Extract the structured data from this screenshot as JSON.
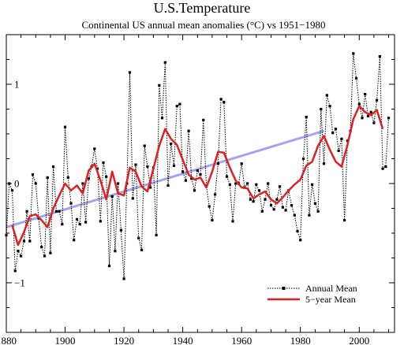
{
  "chart_data": {
    "type": "line",
    "title": "U.S.Temperature",
    "subtitle": "Continental US annual mean anomalies (°C) vs 1951−1980",
    "xlabel": "",
    "ylabel": "",
    "xlim": [
      1880,
      2012
    ],
    "ylim": [
      -1.5,
      1.5
    ],
    "x_ticks": [
      "1880",
      "1900",
      "1920",
      "1940",
      "1960",
      "1980",
      "2000"
    ],
    "y_ticks": [
      "−1",
      "0",
      "1"
    ],
    "grid": false,
    "legend_position": "bottom-right",
    "colors": {
      "annual": "#000000",
      "five_year": "#e02020",
      "trend": "#9999ee"
    },
    "series": [
      {
        "name": "Annual Mean",
        "style": "dotted-line-with-square-markers",
        "x": [
          1880,
          1881,
          1882,
          1883,
          1884,
          1885,
          1886,
          1887,
          1888,
          1889,
          1890,
          1891,
          1892,
          1893,
          1894,
          1895,
          1896,
          1897,
          1898,
          1899,
          1900,
          1901,
          1902,
          1903,
          1904,
          1905,
          1906,
          1907,
          1908,
          1909,
          1910,
          1911,
          1912,
          1913,
          1914,
          1915,
          1916,
          1917,
          1918,
          1919,
          1920,
          1921,
          1922,
          1923,
          1924,
          1925,
          1926,
          1927,
          1928,
          1929,
          1930,
          1931,
          1932,
          1933,
          1934,
          1935,
          1936,
          1937,
          1938,
          1939,
          1940,
          1941,
          1942,
          1943,
          1944,
          1945,
          1946,
          1947,
          1948,
          1949,
          1950,
          1951,
          1952,
          1953,
          1954,
          1955,
          1956,
          1957,
          1958,
          1959,
          1960,
          1961,
          1962,
          1963,
          1964,
          1965,
          1966,
          1967,
          1968,
          1969,
          1970,
          1971,
          1972,
          1973,
          1974,
          1975,
          1976,
          1977,
          1978,
          1979,
          1980,
          1981,
          1982,
          1983,
          1984,
          1985,
          1986,
          1987,
          1988,
          1989,
          1990,
          1991,
          1992,
          1993,
          1994,
          1995,
          1996,
          1997,
          1998,
          1999,
          2000,
          2001,
          2002,
          2003,
          2004,
          2005,
          2006,
          2007,
          2008,
          2009,
          2010
        ],
        "y": [
          -0.52,
          0.0,
          -0.07,
          -0.88,
          -0.68,
          -0.73,
          -0.58,
          -0.28,
          -0.58,
          0.09,
          0.0,
          -0.35,
          -0.64,
          -0.73,
          0.06,
          -0.7,
          0.17,
          -0.28,
          -0.28,
          -0.41,
          0.57,
          0.06,
          -0.2,
          -0.57,
          -0.36,
          -0.41,
          0.0,
          -0.39,
          0.05,
          0.17,
          0.35,
          0.15,
          -0.38,
          0.21,
          0.07,
          -0.83,
          -0.13,
          -0.68,
          0.0,
          -0.47,
          -0.96,
          0.0,
          1.12,
          -0.15,
          0.19,
          -0.55,
          -0.67,
          0.38,
          0.17,
          -0.04,
          0.16,
          -0.52,
          0.99,
          0.66,
          1.22,
          -0.02,
          0.4,
          0.18,
          0.78,
          0.8,
          0.12,
          0.03,
          0.53,
          0.05,
          -0.07,
          0.13,
          0.09,
          0.64,
          -0.02,
          -0.23,
          -0.37,
          -0.11,
          0.2,
          0.85,
          0.82,
          0.07,
          -0.01,
          -0.38,
          0.0,
          0.0,
          0.2,
          -0.04,
          0.0,
          -0.16,
          -0.18,
          -0.01,
          -0.07,
          -0.28,
          -0.16,
          0.0,
          -0.22,
          -0.26,
          -0.16,
          -0.03,
          -0.24,
          -0.27,
          -0.07,
          -0.22,
          -0.32,
          -0.48,
          -0.57,
          0.25,
          0.67,
          -0.32,
          -0.01,
          -0.2,
          -0.28,
          0.75,
          0.2,
          0.89,
          0.78,
          0.51,
          0.55,
          0.33,
          0.45,
          -0.37,
          0.43,
          0.53,
          1.31,
          1.06,
          0.8,
          0.66,
          0.9,
          0.68,
          0.72,
          0.61,
          0.84,
          1.28,
          0.15,
          0.17,
          0.66
        ]
      },
      {
        "name": "5−year Mean",
        "style": "solid",
        "x": [
          1882,
          1884,
          1886,
          1888,
          1890,
          1892,
          1894,
          1896,
          1898,
          1900,
          1902,
          1904,
          1906,
          1908,
          1910,
          1912,
          1914,
          1916,
          1918,
          1920,
          1922,
          1924,
          1926,
          1928,
          1930,
          1932,
          1934,
          1936,
          1938,
          1940,
          1942,
          1944,
          1946,
          1948,
          1950,
          1952,
          1954,
          1956,
          1958,
          1960,
          1962,
          1964,
          1966,
          1968,
          1970,
          1972,
          1974,
          1976,
          1978,
          1980,
          1982,
          1984,
          1986,
          1988,
          1990,
          1992,
          1994,
          1996,
          1998,
          2000,
          2002,
          2004,
          2006,
          2008
        ],
        "y": [
          -0.42,
          -0.62,
          -0.49,
          -0.33,
          -0.31,
          -0.37,
          -0.44,
          -0.25,
          -0.12,
          0.0,
          -0.07,
          -0.02,
          -0.1,
          0.13,
          0.2,
          0.03,
          -0.16,
          0.12,
          -0.1,
          -0.12,
          0.16,
          0.12,
          -0.03,
          -0.08,
          0.15,
          0.38,
          0.55,
          0.45,
          0.39,
          0.24,
          0.09,
          0.04,
          0.06,
          -0.04,
          0.12,
          0.32,
          0.31,
          0.16,
          0.03,
          -0.04,
          -0.05,
          -0.15,
          -0.11,
          -0.08,
          -0.16,
          -0.2,
          -0.14,
          -0.07,
          -0.01,
          0.04,
          0.18,
          0.22,
          0.38,
          0.48,
          0.34,
          0.22,
          0.17,
          0.39,
          0.65,
          0.78,
          0.72,
          0.69,
          0.74,
          0.55
        ]
      },
      {
        "name": "",
        "style": "linear-trend",
        "x": [
          1880,
          1988
        ],
        "y": [
          -0.44,
          0.53
        ]
      }
    ],
    "legend": [
      "Annual Mean",
      "5−year Mean"
    ]
  }
}
